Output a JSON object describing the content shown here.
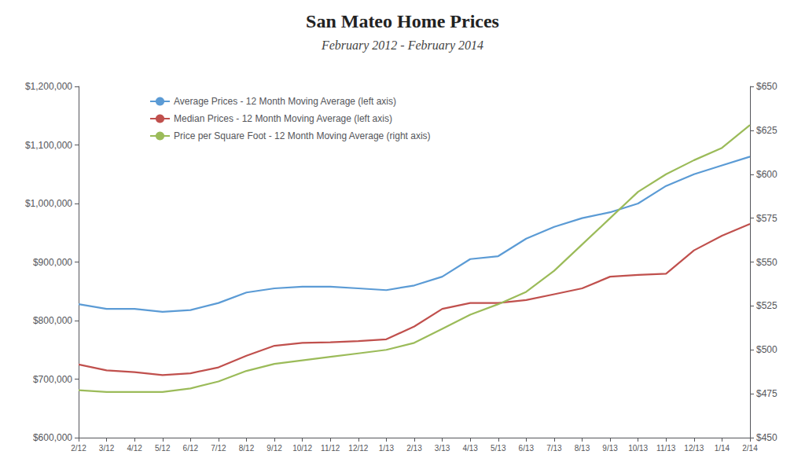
{
  "chart_data": {
    "type": "line",
    "title": "San Mateo Home Prices",
    "subtitle": "February 2012 - February 2014",
    "categories": [
      "2/12",
      "3/12",
      "4/12",
      "5/12",
      "6/12",
      "7/12",
      "8/12",
      "9/12",
      "10/12",
      "11/12",
      "12/12",
      "1/13",
      "2/13",
      "3/13",
      "4/13",
      "5/13",
      "6/13",
      "7/13",
      "8/13",
      "9/13",
      "10/13",
      "11/13",
      "12/13",
      "1/14",
      "2/14"
    ],
    "series": [
      {
        "name": "Average Prices - 12 Month Moving Average (left axis)",
        "color": "#5B9BD5",
        "axis": "y",
        "values": [
          828000,
          820000,
          820000,
          815000,
          818000,
          830000,
          848000,
          855000,
          858000,
          858000,
          855000,
          852000,
          860000,
          875000,
          905000,
          910000,
          940000,
          960000,
          975000,
          985000,
          1000000,
          1030000,
          1050000,
          1065000,
          1080000
        ]
      },
      {
        "name": "Median Prices - 12 Month Moving Average (left axis)",
        "color": "#C0504D",
        "axis": "y",
        "values": [
          725000,
          715000,
          712000,
          707000,
          710000,
          720000,
          740000,
          757000,
          762000,
          763000,
          765000,
          768000,
          790000,
          820000,
          830000,
          830000,
          835000,
          845000,
          855000,
          875000,
          878000,
          880000,
          920000,
          945000,
          965000
        ]
      },
      {
        "name": "Price per Square Foot - 12 Month Moving Average (right axis)",
        "color": "#9BBB59",
        "axis": "y2",
        "values": [
          477,
          476,
          476,
          476,
          478,
          482,
          488,
          492,
          494,
          496,
          498,
          500,
          504,
          512,
          520,
          526,
          533,
          545,
          560,
          575,
          590,
          600,
          608,
          615,
          628
        ]
      }
    ],
    "ylim": [
      600000,
      1200000
    ],
    "yticks": [
      {
        "value": 600000,
        "label": "$600,000"
      },
      {
        "value": 700000,
        "label": "$700,000"
      },
      {
        "value": 800000,
        "label": "$800,000"
      },
      {
        "value": 900000,
        "label": "$900,000"
      },
      {
        "value": 1000000,
        "label": "$1,000,000"
      },
      {
        "value": 1100000,
        "label": "$1,100,000"
      },
      {
        "value": 1200000,
        "label": "$1,200,000"
      }
    ],
    "y2lim": [
      450,
      650
    ],
    "y2ticks": [
      {
        "value": 450,
        "label": "$450"
      },
      {
        "value": 475,
        "label": "$475"
      },
      {
        "value": 500,
        "label": "$500"
      },
      {
        "value": 525,
        "label": "$525"
      },
      {
        "value": 550,
        "label": "$550"
      },
      {
        "value": 575,
        "label": "$575"
      },
      {
        "value": 600,
        "label": "$600"
      },
      {
        "value": 625,
        "label": "$625"
      },
      {
        "value": 650,
        "label": "$650"
      }
    ],
    "grid": false,
    "legend": "upper left"
  }
}
